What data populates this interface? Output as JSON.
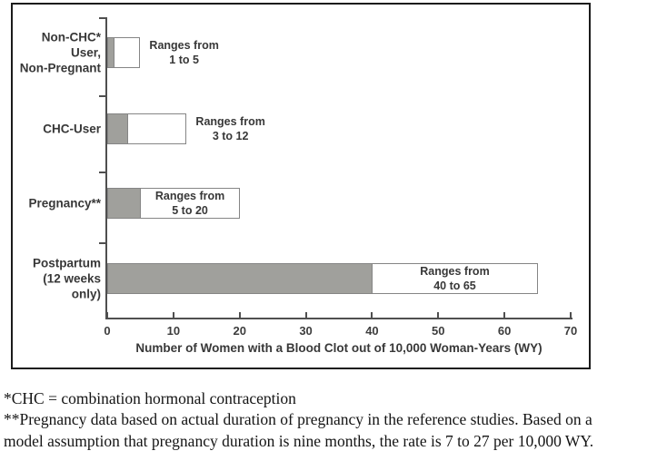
{
  "chart_data": {
    "type": "bar",
    "orientation": "horizontal",
    "title": "",
    "xlabel": "Number of Women with a Blood Clot out of 10,000 Woman-Years (WY)",
    "xlim": [
      0,
      70
    ],
    "x_ticks": [
      0,
      10,
      20,
      30,
      40,
      50,
      60,
      70
    ],
    "grid": false,
    "legend": "none",
    "bars": [
      {
        "category_lines": [
          "Non-CHC* User,",
          "Non-Pregnant"
        ],
        "range_low": 1,
        "range_high": 5,
        "annotation_lines": [
          "Ranges from",
          "1 to 5"
        ],
        "annotation_position": "right-of-bar"
      },
      {
        "category_lines": [
          "CHC-User"
        ],
        "range_low": 3,
        "range_high": 12,
        "annotation_lines": [
          "Ranges from",
          "3 to 12"
        ],
        "annotation_position": "right-of-bar"
      },
      {
        "category_lines": [
          "Pregnancy**"
        ],
        "range_low": 5,
        "range_high": 20,
        "annotation_lines": [
          "Ranges from",
          "5 to 20"
        ],
        "annotation_position": "inside-bar"
      },
      {
        "category_lines": [
          "Postpartum",
          "(12 weeks only)"
        ],
        "range_low": 40,
        "range_high": 65,
        "annotation_lines": [
          "Ranges from",
          "40 to 65"
        ],
        "annotation_position": "inside-bar"
      }
    ],
    "colors": {
      "lower_segment_fill": "#a0a09c",
      "upper_segment_fill": "#ffffff",
      "bar_border": "#858585",
      "axis_line": "#4f4f4f",
      "frame_border": "#1b1b1b",
      "label_text": "#383838"
    }
  },
  "footnotes": {
    "line1": "*CHC = combination hormonal contraception",
    "line2": "**Pregnancy data based on actual duration of pregnancy in the reference studies. Based on a",
    "line3": "model assumption that pregnancy duration is nine months, the rate is 7 to 27 per 10,000 WY."
  }
}
